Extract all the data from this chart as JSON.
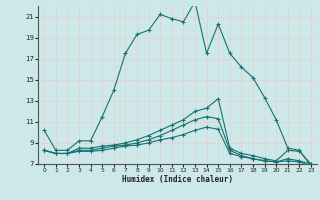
{
  "xlabel": "Humidex (Indice chaleur)",
  "xlim": [
    -0.5,
    23.5
  ],
  "ylim": [
    7,
    22
  ],
  "yticks": [
    7,
    9,
    11,
    13,
    15,
    17,
    19,
    21
  ],
  "xticks": [
    0,
    1,
    2,
    3,
    4,
    5,
    6,
    7,
    8,
    9,
    10,
    11,
    12,
    13,
    14,
    15,
    16,
    17,
    18,
    19,
    20,
    21,
    22,
    23
  ],
  "background_color": "#cce8e8",
  "grid_color": "#e8d0d0",
  "line_color": "#1a7070",
  "line1_x": [
    0,
    1,
    2,
    3,
    4,
    5,
    6,
    7,
    8,
    9,
    10,
    11,
    12,
    13,
    14,
    15,
    16,
    17,
    18,
    19,
    20,
    21,
    22,
    23
  ],
  "line1_y": [
    10.2,
    8.3,
    8.3,
    9.2,
    9.2,
    11.5,
    14.0,
    17.5,
    19.3,
    19.7,
    21.2,
    20.8,
    20.5,
    22.4,
    17.5,
    20.3,
    17.5,
    16.2,
    15.2,
    13.3,
    11.2,
    8.5,
    8.3,
    6.8
  ],
  "line2_x": [
    0,
    1,
    2,
    3,
    4,
    5,
    6,
    7,
    8,
    9,
    10,
    11,
    12,
    13,
    14,
    15,
    16,
    17,
    18,
    19,
    20,
    21,
    22,
    23
  ],
  "line2_y": [
    8.3,
    8.0,
    8.0,
    8.5,
    8.5,
    8.7,
    8.8,
    9.0,
    9.3,
    9.7,
    10.2,
    10.7,
    11.2,
    12.0,
    12.3,
    13.2,
    8.5,
    8.0,
    7.8,
    7.5,
    7.3,
    8.3,
    8.2,
    7.0
  ],
  "line3_x": [
    0,
    1,
    2,
    3,
    4,
    5,
    6,
    7,
    8,
    9,
    10,
    11,
    12,
    13,
    14,
    15,
    16,
    17,
    18,
    19,
    20,
    21,
    22,
    23
  ],
  "line3_y": [
    8.3,
    8.0,
    8.0,
    8.3,
    8.3,
    8.5,
    8.7,
    8.8,
    9.0,
    9.3,
    9.7,
    10.2,
    10.7,
    11.2,
    11.5,
    11.3,
    8.3,
    7.8,
    7.5,
    7.3,
    7.2,
    7.5,
    7.3,
    7.0
  ],
  "line4_x": [
    0,
    1,
    2,
    3,
    4,
    5,
    6,
    7,
    8,
    9,
    10,
    11,
    12,
    13,
    14,
    15,
    16,
    17,
    18,
    19,
    20,
    21,
    22,
    23
  ],
  "line4_y": [
    8.3,
    8.0,
    8.0,
    8.2,
    8.2,
    8.3,
    8.5,
    8.7,
    8.8,
    9.0,
    9.3,
    9.5,
    9.8,
    10.2,
    10.5,
    10.3,
    8.0,
    7.7,
    7.5,
    7.3,
    7.2,
    7.3,
    7.2,
    6.8
  ]
}
